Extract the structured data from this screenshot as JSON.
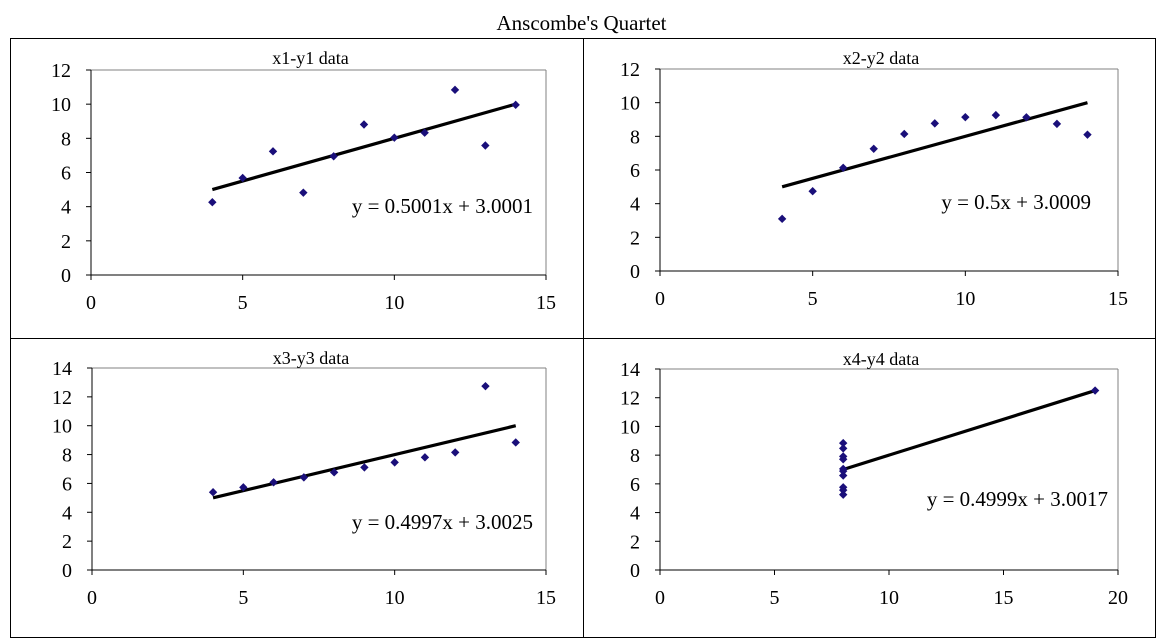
{
  "title": "Anscombe's Quartet",
  "colors": {
    "marker": "#1a0f7a",
    "trendline": "#000000",
    "axis": "#000000",
    "frame": "#808080"
  },
  "chart_data": [
    {
      "type": "scatter",
      "title": "x1-y1 data",
      "xlim": [
        0,
        15
      ],
      "ylim": [
        0,
        12
      ],
      "xticks": [
        0,
        5,
        10,
        15
      ],
      "yticks": [
        0,
        2,
        4,
        6,
        8,
        10,
        12
      ],
      "x": [
        10,
        8,
        13,
        9,
        11,
        14,
        6,
        4,
        12,
        7,
        5
      ],
      "y": [
        8.04,
        6.95,
        7.58,
        8.81,
        8.33,
        9.96,
        7.24,
        4.26,
        10.84,
        4.82,
        5.68
      ],
      "trendline": {
        "slope": 0.5001,
        "intercept": 3.0001,
        "x_range": [
          4,
          14
        ],
        "equation": "y = 0.5001x + 3.0001"
      }
    },
    {
      "type": "scatter",
      "title": "x2-y2 data",
      "xlim": [
        0,
        15
      ],
      "ylim": [
        0,
        12
      ],
      "xticks": [
        0,
        5,
        10,
        15
      ],
      "yticks": [
        0,
        2,
        4,
        6,
        8,
        10,
        12
      ],
      "x": [
        10,
        8,
        13,
        9,
        11,
        14,
        6,
        4,
        12,
        7,
        5
      ],
      "y": [
        9.14,
        8.14,
        8.74,
        8.77,
        9.26,
        8.1,
        6.13,
        3.1,
        9.13,
        7.26,
        4.74
      ],
      "trendline": {
        "slope": 0.5,
        "intercept": 3.0009,
        "x_range": [
          4,
          14
        ],
        "equation": "y = 0.5x + 3.0009"
      }
    },
    {
      "type": "scatter",
      "title": "x3-y3 data",
      "xlim": [
        0,
        15
      ],
      "ylim": [
        0,
        14
      ],
      "xticks": [
        0,
        5,
        10,
        15
      ],
      "yticks": [
        0,
        2,
        4,
        6,
        8,
        10,
        12,
        14
      ],
      "x": [
        10,
        8,
        13,
        9,
        11,
        14,
        6,
        4,
        12,
        7,
        5
      ],
      "y": [
        7.46,
        6.77,
        12.74,
        7.11,
        7.81,
        8.84,
        6.08,
        5.39,
        8.15,
        6.42,
        5.73
      ],
      "trendline": {
        "slope": 0.4997,
        "intercept": 3.0025,
        "x_range": [
          4,
          14
        ],
        "equation": "y = 0.4997x + 3.0025"
      }
    },
    {
      "type": "scatter",
      "title": "x4-y4 data",
      "xlim": [
        0,
        20
      ],
      "ylim": [
        0,
        14
      ],
      "xticks": [
        0,
        5,
        10,
        15,
        20
      ],
      "yticks": [
        0,
        2,
        4,
        6,
        8,
        10,
        12,
        14
      ],
      "x": [
        8,
        8,
        8,
        8,
        8,
        8,
        8,
        19,
        8,
        8,
        8
      ],
      "y": [
        6.58,
        5.76,
        7.71,
        8.84,
        8.47,
        7.04,
        5.25,
        12.5,
        5.56,
        7.91,
        6.89
      ],
      "trendline": {
        "slope": 0.4999,
        "intercept": 3.0017,
        "x_range": [
          8,
          19
        ],
        "equation": "y = 0.4999x + 3.0017"
      }
    }
  ]
}
